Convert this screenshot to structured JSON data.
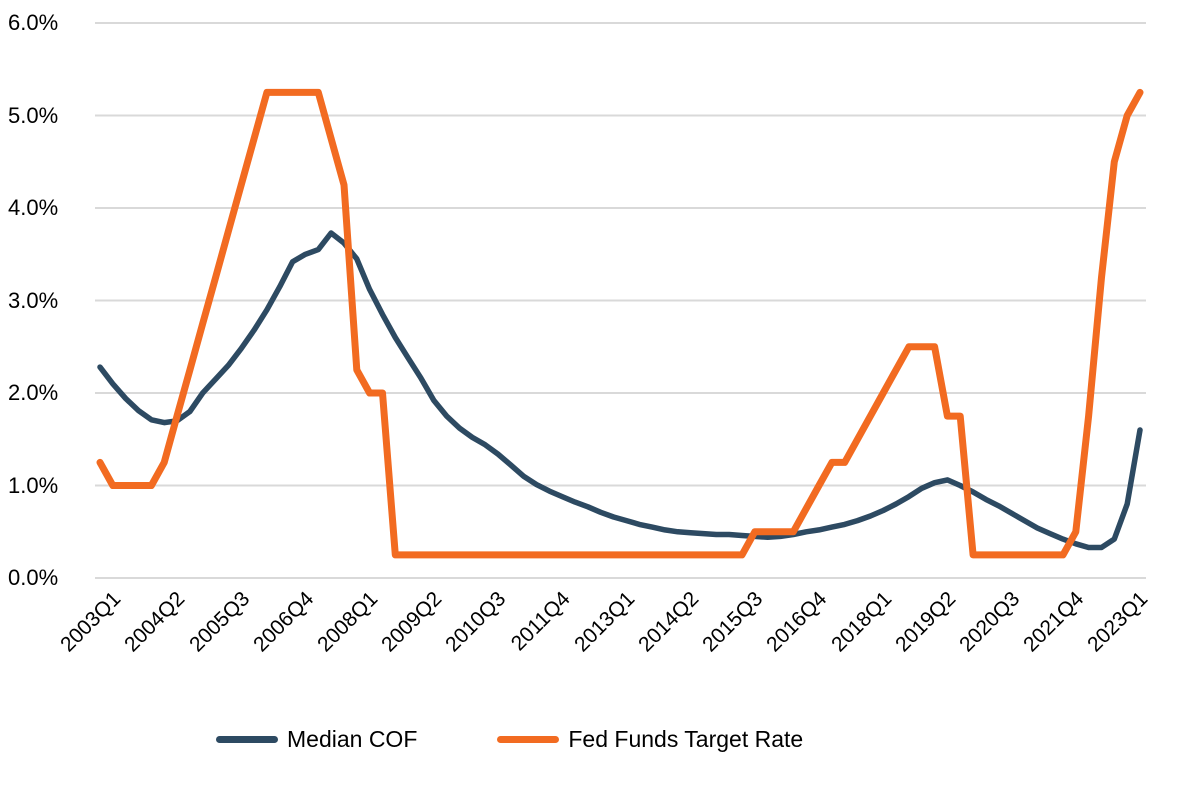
{
  "chart_data": {
    "type": "line",
    "title": "",
    "xlabel": "",
    "ylabel": "",
    "ylim": [
      0,
      6
    ],
    "y_tick_labels": [
      "0.0%",
      "1.0%",
      "2.0%",
      "3.0%",
      "4.0%",
      "5.0%",
      "6.0%"
    ],
    "grid": "horizontal-only",
    "grid_color": "#D9D9D9",
    "legend_position": "bottom",
    "x": [
      "2003Q1",
      "2003Q2",
      "2003Q3",
      "2003Q4",
      "2004Q1",
      "2004Q2",
      "2004Q3",
      "2004Q4",
      "2005Q1",
      "2005Q2",
      "2005Q3",
      "2005Q4",
      "2006Q1",
      "2006Q2",
      "2006Q3",
      "2006Q4",
      "2007Q1",
      "2007Q2",
      "2007Q3",
      "2007Q4",
      "2008Q1",
      "2008Q2",
      "2008Q3",
      "2008Q4",
      "2009Q1",
      "2009Q2",
      "2009Q3",
      "2009Q4",
      "2010Q1",
      "2010Q2",
      "2010Q3",
      "2010Q4",
      "2011Q1",
      "2011Q2",
      "2011Q3",
      "2011Q4",
      "2012Q1",
      "2012Q2",
      "2012Q3",
      "2012Q4",
      "2013Q1",
      "2013Q2",
      "2013Q3",
      "2013Q4",
      "2014Q1",
      "2014Q2",
      "2014Q3",
      "2014Q4",
      "2015Q1",
      "2015Q2",
      "2015Q3",
      "2015Q4",
      "2016Q1",
      "2016Q2",
      "2016Q3",
      "2016Q4",
      "2017Q1",
      "2017Q2",
      "2017Q3",
      "2017Q4",
      "2018Q1",
      "2018Q2",
      "2018Q3",
      "2018Q4",
      "2019Q1",
      "2019Q2",
      "2019Q3",
      "2019Q4",
      "2020Q1",
      "2020Q2",
      "2020Q3",
      "2020Q4",
      "2021Q1",
      "2021Q2",
      "2021Q3",
      "2021Q4",
      "2022Q1",
      "2022Q2",
      "2022Q3",
      "2022Q4",
      "2023Q1",
      "2023Q2"
    ],
    "x_tick_labels": [
      "2003Q1",
      "2004Q2",
      "2005Q3",
      "2006Q4",
      "2008Q1",
      "2009Q2",
      "2010Q3",
      "2011Q4",
      "2013Q1",
      "2014Q2",
      "2015Q3",
      "2016Q4",
      "2018Q1",
      "2019Q2",
      "2020Q3",
      "2021Q4",
      "2023Q1"
    ],
    "series": [
      {
        "name": "Median COF",
        "color": "#2D4A62",
        "stroke_width": 5.5,
        "values": [
          2.28,
          2.1,
          1.94,
          1.81,
          1.71,
          1.68,
          1.7,
          1.8,
          2.0,
          2.15,
          2.3,
          2.48,
          2.68,
          2.9,
          3.15,
          3.42,
          3.5,
          3.55,
          3.73,
          3.62,
          3.45,
          3.12,
          2.85,
          2.6,
          2.38,
          2.16,
          1.92,
          1.75,
          1.62,
          1.52,
          1.44,
          1.34,
          1.22,
          1.1,
          1.01,
          0.94,
          0.88,
          0.82,
          0.77,
          0.71,
          0.66,
          0.62,
          0.58,
          0.55,
          0.52,
          0.5,
          0.49,
          0.48,
          0.47,
          0.47,
          0.46,
          0.45,
          0.44,
          0.45,
          0.47,
          0.5,
          0.52,
          0.55,
          0.58,
          0.62,
          0.67,
          0.73,
          0.8,
          0.88,
          0.97,
          1.03,
          1.06,
          1.0,
          0.93,
          0.85,
          0.78,
          0.7,
          0.62,
          0.54,
          0.48,
          0.42,
          0.37,
          0.33,
          0.33,
          0.42,
          0.8,
          1.6
        ]
      },
      {
        "name": "Fed Funds Target Rate",
        "color": "#F26B21",
        "stroke_width": 7,
        "values": [
          1.25,
          1.0,
          1.0,
          1.0,
          1.0,
          1.25,
          1.75,
          2.25,
          2.75,
          3.25,
          3.75,
          4.25,
          4.75,
          5.25,
          5.25,
          5.25,
          5.25,
          5.25,
          4.75,
          4.25,
          2.25,
          2.0,
          2.0,
          0.25,
          0.25,
          0.25,
          0.25,
          0.25,
          0.25,
          0.25,
          0.25,
          0.25,
          0.25,
          0.25,
          0.25,
          0.25,
          0.25,
          0.25,
          0.25,
          0.25,
          0.25,
          0.25,
          0.25,
          0.25,
          0.25,
          0.25,
          0.25,
          0.25,
          0.25,
          0.25,
          0.25,
          0.5,
          0.5,
          0.5,
          0.5,
          0.75,
          1.0,
          1.25,
          1.25,
          1.5,
          1.75,
          2.0,
          2.25,
          2.5,
          2.5,
          2.5,
          1.75,
          1.75,
          0.25,
          0.25,
          0.25,
          0.25,
          0.25,
          0.25,
          0.25,
          0.25,
          0.5,
          1.75,
          3.25,
          4.5,
          5.0,
          5.25
        ]
      }
    ]
  }
}
